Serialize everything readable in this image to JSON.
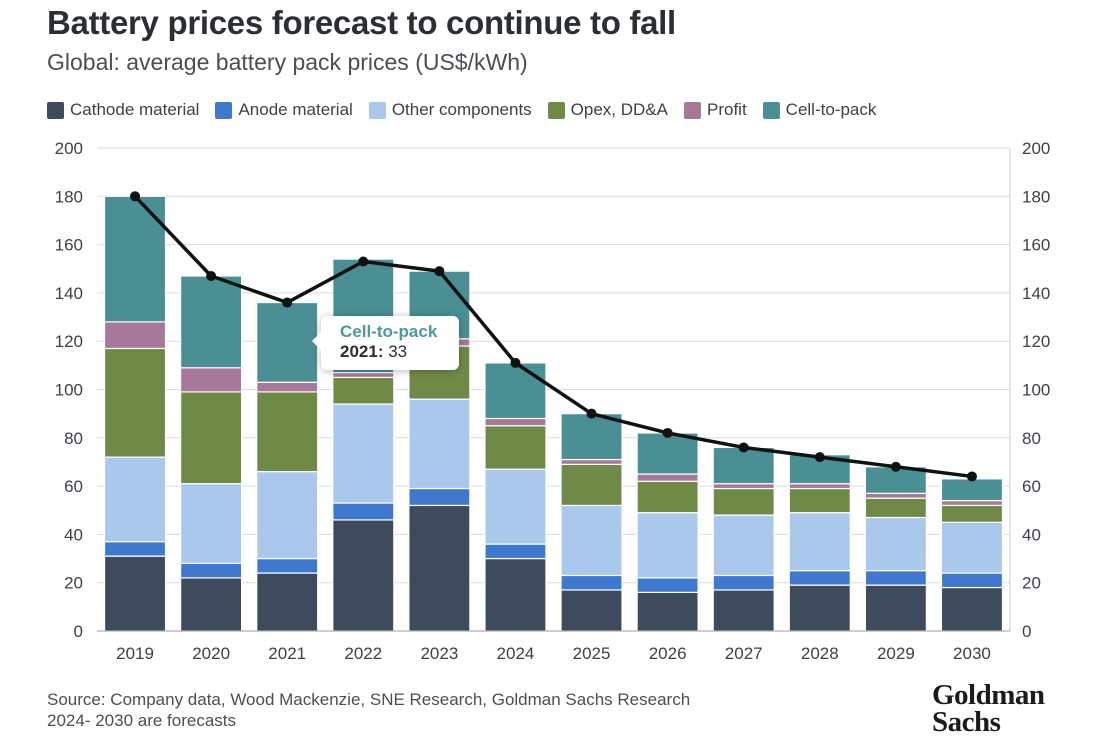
{
  "header": {
    "title": "Battery prices forecast to continue to fall",
    "subtitle": "Global: average battery pack prices (US$/kWh)"
  },
  "footer": {
    "source": "Source: Company data, Wood Mackenzie, SNE Research, Goldman Sachs Research",
    "note": "2024- 2030 are forecasts"
  },
  "logo": {
    "line1": "Goldman",
    "line2": "Sachs"
  },
  "tooltip": {
    "series": "Cell-to-pack",
    "category": "2021:",
    "value": "33"
  },
  "chart_data": {
    "type": "bar",
    "stacked": true,
    "categories": [
      "2019",
      "2020",
      "2021",
      "2022",
      "2023",
      "2024",
      "2025",
      "2026",
      "2027",
      "2028",
      "2029",
      "2030"
    ],
    "series": [
      {
        "name": "Cathode material",
        "color": "#3e4b5c",
        "values": [
          31,
          22,
          24,
          46,
          52,
          30,
          17,
          16,
          17,
          19,
          19,
          18
        ]
      },
      {
        "name": "Anode material",
        "color": "#3f79cf",
        "values": [
          6,
          6,
          6,
          7,
          7,
          6,
          6,
          6,
          6,
          6,
          6,
          6
        ]
      },
      {
        "name": "Other components",
        "color": "#a9c8ec",
        "values": [
          35,
          33,
          36,
          41,
          37,
          31,
          29,
          27,
          25,
          24,
          22,
          21
        ]
      },
      {
        "name": "Opex, DD&A",
        "color": "#6f8a47",
        "values": [
          45,
          38,
          33,
          11,
          22,
          18,
          17,
          13,
          11,
          10,
          8,
          7
        ]
      },
      {
        "name": "Profit",
        "color": "#a7789a",
        "values": [
          11,
          10,
          4,
          2,
          3,
          3,
          2,
          3,
          2,
          2,
          2,
          2
        ]
      },
      {
        "name": "Cell-to-pack",
        "color": "#4a8f93",
        "values": [
          52,
          38,
          33,
          47,
          28,
          23,
          19,
          17,
          15,
          12,
          11,
          9
        ]
      }
    ],
    "line": {
      "color": "#111111",
      "values": [
        180,
        147,
        136,
        153,
        149,
        111,
        90,
        82,
        76,
        72,
        68,
        64
      ]
    },
    "ylim": [
      0,
      200
    ],
    "yticks": [
      0,
      20,
      40,
      60,
      80,
      100,
      120,
      140,
      160,
      180,
      200
    ],
    "secondary_axis": true,
    "grid": true,
    "legend": "top-left"
  }
}
